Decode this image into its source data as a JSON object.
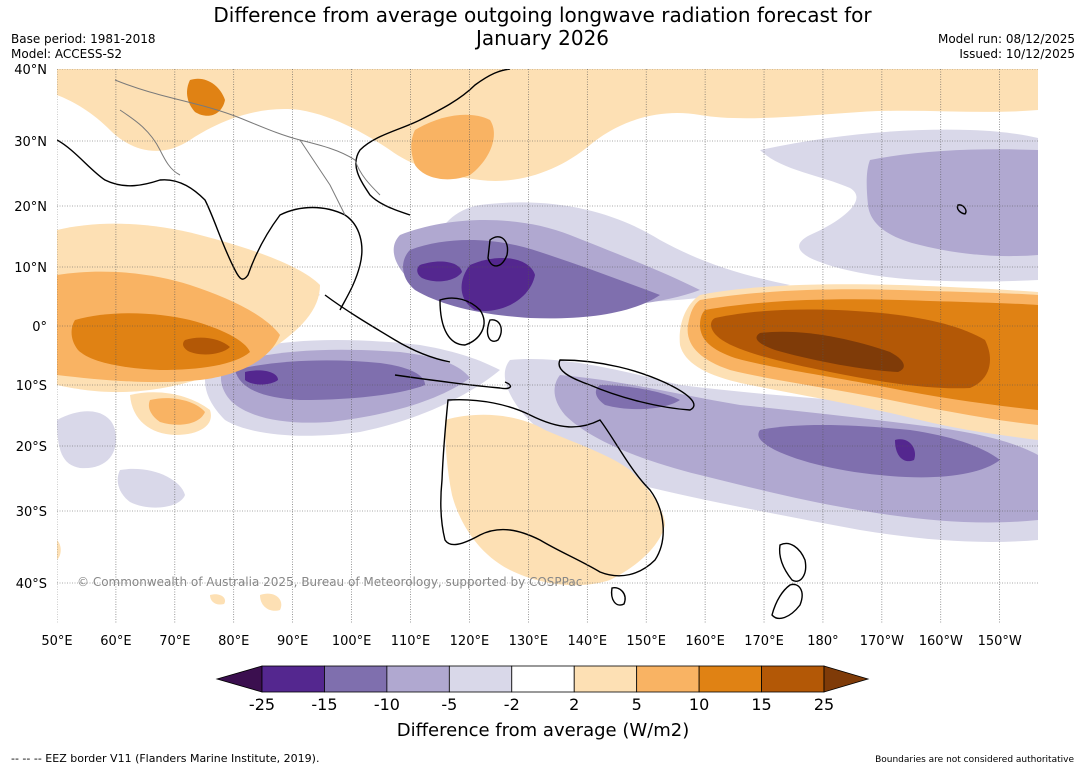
{
  "header": {
    "title_line1": "Difference from average outgoing longwave radiation forecast for",
    "title_line2": "January 2026",
    "base_period": "Base period: 1981-2018",
    "model": "Model: ACCESS-S2",
    "model_run": "Model run: 08/12/2025",
    "issued": "Issued: 10/12/2025"
  },
  "map": {
    "copyright": "© Commonwealth of Australia 2025, Bureau of Meteorology, supported by COSPPac",
    "lat_labels": [
      "40°N",
      "30°N",
      "20°N",
      "10°N",
      "0°",
      "10°S",
      "20°S",
      "30°S",
      "40°S"
    ],
    "lat_values": [
      40,
      30,
      20,
      10,
      0,
      -10,
      -20,
      -30,
      -40
    ],
    "lon_labels": [
      "50°E",
      "60°E",
      "70°E",
      "80°E",
      "90°E",
      "100°E",
      "110°E",
      "120°E",
      "130°E",
      "140°E",
      "150°E",
      "160°E",
      "170°E",
      "180°",
      "170°W",
      "160°W",
      "150°W"
    ],
    "lon_values": [
      50,
      60,
      70,
      80,
      90,
      100,
      110,
      120,
      130,
      140,
      150,
      160,
      170,
      180,
      190,
      200,
      210
    ]
  },
  "colorbar": {
    "title": "Difference from average (W/m2)",
    "tick_labels": [
      "-25",
      "-15",
      "-10",
      "-5",
      "-2",
      "2",
      "5",
      "10",
      "15",
      "25"
    ],
    "colors": [
      "#3b0f4f",
      "#54278f",
      "#7f6fae",
      "#b0a8d0",
      "#d9d8e9",
      "#ffffff",
      "#fde0b4",
      "#f9b363",
      "#e08214",
      "#b35806",
      "#7f3b08"
    ]
  },
  "footer": {
    "eez_note": "--  --  -- EEZ border V11 (Flanders Marine Institute, 2019).",
    "boundaries_note": "Boundaries are not considered authoritative"
  }
}
